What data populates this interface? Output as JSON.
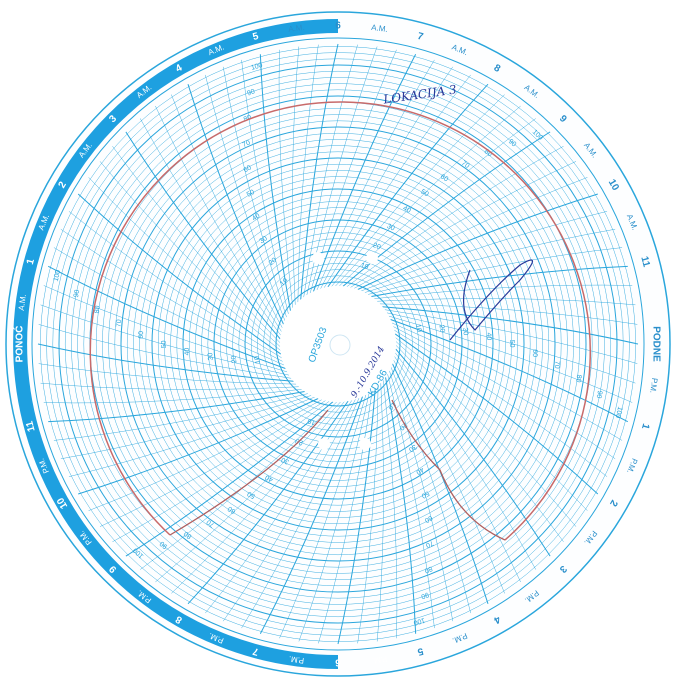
{
  "disc": {
    "center_code": "OP3503",
    "model": "KD-86",
    "hour_labels": [
      "PONOĆ",
      "1",
      "2",
      "3",
      "4",
      "5",
      "6",
      "7",
      "8",
      "9",
      "10",
      "11",
      "PODNE",
      "1",
      "2",
      "3",
      "4",
      "5",
      "6",
      "7",
      "8",
      "9",
      "10",
      "11"
    ],
    "am": "A.M.",
    "pm": "P.M.",
    "scale": [
      10,
      20,
      30,
      40,
      50,
      60,
      70,
      80,
      90,
      100
    ],
    "handwritten": [
      "LOKACIJA 3",
      "9.-10.9.2014"
    ]
  }
}
